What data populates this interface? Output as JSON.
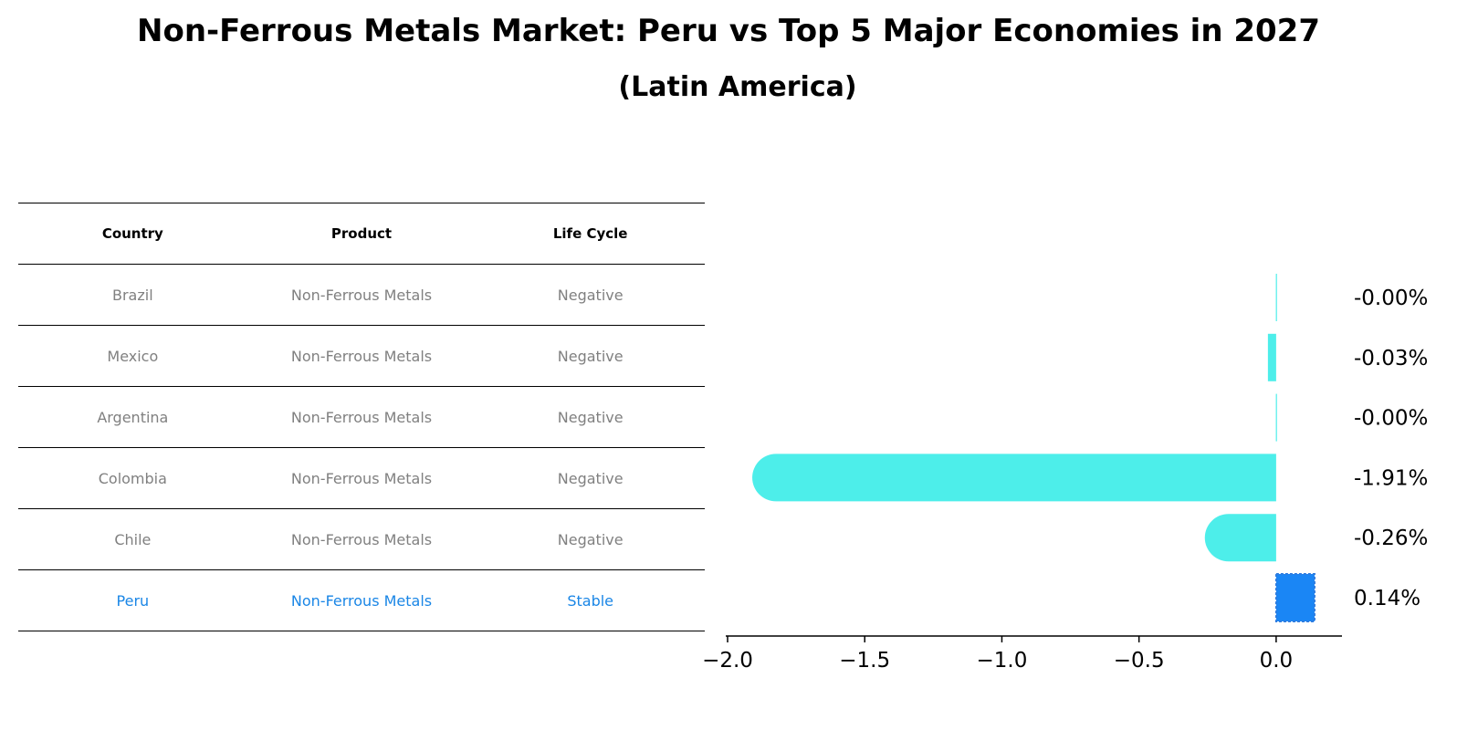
{
  "title": "Non-Ferrous Metals Market: Peru vs Top 5 Major Economies in 2027",
  "subtitle": "(Latin America)",
  "table": {
    "headers": [
      "Country",
      "Product",
      "Life Cycle"
    ],
    "rows": [
      {
        "country": "Brazil",
        "product": "Non-Ferrous Metals",
        "life_cycle": "Negative"
      },
      {
        "country": "Mexico",
        "product": "Non-Ferrous Metals",
        "life_cycle": "Negative"
      },
      {
        "country": "Argentina",
        "product": "Non-Ferrous Metals",
        "life_cycle": "Negative"
      },
      {
        "country": "Colombia",
        "product": "Non-Ferrous Metals",
        "life_cycle": "Negative"
      },
      {
        "country": "Chile",
        "product": "Non-Ferrous Metals",
        "life_cycle": "Negative"
      },
      {
        "country": "Peru",
        "product": "Non-Ferrous Metals",
        "life_cycle": "Stable"
      }
    ]
  },
  "colors": {
    "others": "#4deeea",
    "highlight": "#1a86f5",
    "table_muted": "#808080",
    "table_highlight": "#1a86e6"
  },
  "chart_data": {
    "type": "bar",
    "orientation": "horizontal",
    "categories": [
      "Brazil",
      "Mexico",
      "Argentina",
      "Colombia",
      "Chile",
      "Peru"
    ],
    "values": [
      -0.001,
      -0.03,
      -0.001,
      -1.91,
      -0.26,
      0.14
    ],
    "data_labels": [
      "-0.00%",
      "-0.03%",
      "-0.00%",
      "-1.91%",
      "-0.26%",
      "0.14%"
    ],
    "highlight": "Peru",
    "xlim": [
      -2.0,
      0.24
    ],
    "xticks": [
      -2.0,
      -1.5,
      -1.0,
      -0.5,
      0.0
    ],
    "xtick_labels": [
      "−2.0",
      "−1.5",
      "−1.0",
      "−0.5",
      "0.0"
    ],
    "grid": false
  }
}
